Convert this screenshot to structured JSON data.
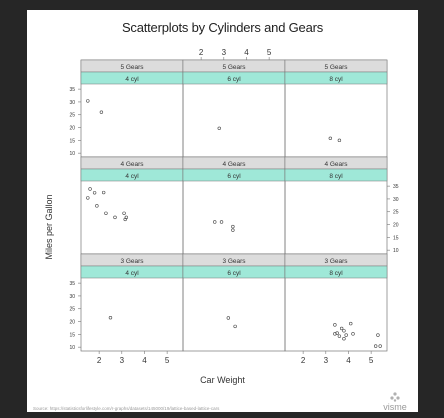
{
  "chart_data": {
    "type": "scatter",
    "title": "Scatterplots by Cylinders and Gears",
    "xlabel": "Car Weight",
    "ylabel": "Miles per Gallon",
    "xlim": [
      1.2,
      5.7
    ],
    "ylim": [
      8.5,
      37
    ],
    "x_ticks": [
      2,
      3,
      4,
      5
    ],
    "y_ticks": [
      10,
      15,
      20,
      25,
      30,
      35
    ],
    "grid": false,
    "panels": [
      {
        "gear_label": "5 Gears",
        "cyl_label": "4 cyl",
        "points": [
          [
            1.5,
            30.4
          ],
          [
            2.1,
            26.0
          ]
        ]
      },
      {
        "gear_label": "5 Gears",
        "cyl_label": "6 cyl",
        "points": [
          [
            2.8,
            19.7
          ]
        ]
      },
      {
        "gear_label": "5 Gears",
        "cyl_label": "8 cyl",
        "points": [
          [
            3.2,
            15.8
          ],
          [
            3.6,
            15.0
          ]
        ]
      },
      {
        "gear_label": "4 Gears",
        "cyl_label": "4 cyl",
        "points": [
          [
            1.6,
            33.9
          ],
          [
            1.8,
            32.4
          ],
          [
            2.2,
            32.5
          ],
          [
            1.5,
            30.4
          ],
          [
            1.9,
            27.3
          ],
          [
            2.3,
            24.4
          ],
          [
            2.7,
            22.8
          ],
          [
            3.1,
            24.4
          ],
          [
            3.2,
            22.8
          ],
          [
            3.15,
            22.0
          ]
        ]
      },
      {
        "gear_label": "4 Gears",
        "cyl_label": "6 cyl",
        "points": [
          [
            2.6,
            21.0
          ],
          [
            2.9,
            21.0
          ],
          [
            3.4,
            19.2
          ],
          [
            3.4,
            17.8
          ]
        ]
      },
      {
        "gear_label": "4 Gears",
        "cyl_label": "8 cyl",
        "points": []
      },
      {
        "gear_label": "3 Gears",
        "cyl_label": "4 cyl",
        "points": [
          [
            2.5,
            21.5
          ]
        ]
      },
      {
        "gear_label": "3 Gears",
        "cyl_label": "6 cyl",
        "points": [
          [
            3.2,
            21.4
          ],
          [
            3.5,
            18.1
          ]
        ]
      },
      {
        "gear_label": "3 Gears",
        "cyl_label": "8 cyl",
        "points": [
          [
            3.4,
            18.7
          ],
          [
            3.6,
            14.3
          ],
          [
            3.8,
            16.4
          ],
          [
            3.7,
            17.3
          ],
          [
            4.1,
            19.2
          ],
          [
            3.5,
            15.5
          ],
          [
            3.4,
            15.2
          ],
          [
            3.8,
            13.3
          ],
          [
            4.2,
            15.2
          ],
          [
            3.9,
            14.7
          ],
          [
            5.2,
            10.4
          ],
          [
            5.4,
            10.4
          ],
          [
            5.3,
            14.7
          ]
        ]
      }
    ]
  },
  "source": "Source: https://statisticsforlifestyle.com/r-graphs/datasets/145000/19/lattice-based-lattice-cars",
  "brand": {
    "name": "visme"
  },
  "colors": {
    "strip_gear": "#dcdcdc",
    "strip_cyl": "#9fe8d8",
    "points": "#444444",
    "frame": "#777777"
  }
}
